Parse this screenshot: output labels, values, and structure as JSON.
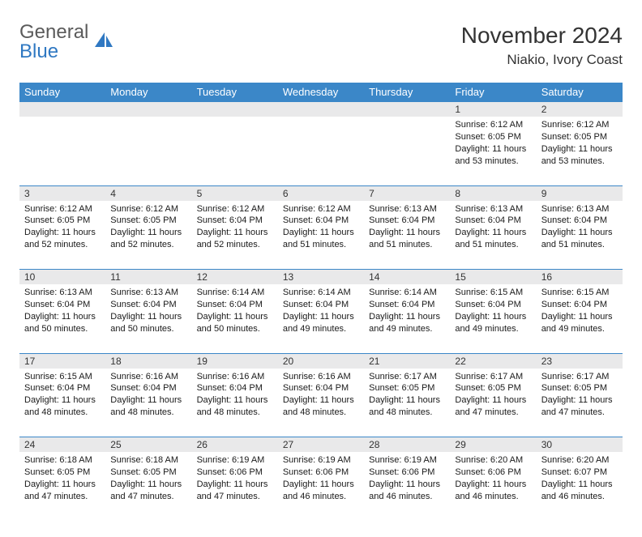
{
  "brand": {
    "line1": "General",
    "line2": "Blue",
    "logo_color": "#2f78c2",
    "text_color": "#5a5a5a"
  },
  "title": "November 2024",
  "location": "Niakio, Ivory Coast",
  "colors": {
    "header_bg": "#3b87c8",
    "header_text": "#ffffff",
    "daynum_bg": "#e9e9ea",
    "cell_border": "#3b87c8",
    "body_text": "#1a1a1a",
    "title_text": "#333333"
  },
  "fonts": {
    "title_size": 28,
    "location_size": 17,
    "dayname_size": 13,
    "daynum_size": 12,
    "cell_size": 11
  },
  "daynames": [
    "Sunday",
    "Monday",
    "Tuesday",
    "Wednesday",
    "Thursday",
    "Friday",
    "Saturday"
  ],
  "weeks": [
    [
      null,
      null,
      null,
      null,
      null,
      {
        "n": "1",
        "sr": "Sunrise: 6:12 AM",
        "ss": "Sunset: 6:05 PM",
        "d1": "Daylight: 11 hours",
        "d2": "and 53 minutes."
      },
      {
        "n": "2",
        "sr": "Sunrise: 6:12 AM",
        "ss": "Sunset: 6:05 PM",
        "d1": "Daylight: 11 hours",
        "d2": "and 53 minutes."
      }
    ],
    [
      {
        "n": "3",
        "sr": "Sunrise: 6:12 AM",
        "ss": "Sunset: 6:05 PM",
        "d1": "Daylight: 11 hours",
        "d2": "and 52 minutes."
      },
      {
        "n": "4",
        "sr": "Sunrise: 6:12 AM",
        "ss": "Sunset: 6:05 PM",
        "d1": "Daylight: 11 hours",
        "d2": "and 52 minutes."
      },
      {
        "n": "5",
        "sr": "Sunrise: 6:12 AM",
        "ss": "Sunset: 6:04 PM",
        "d1": "Daylight: 11 hours",
        "d2": "and 52 minutes."
      },
      {
        "n": "6",
        "sr": "Sunrise: 6:12 AM",
        "ss": "Sunset: 6:04 PM",
        "d1": "Daylight: 11 hours",
        "d2": "and 51 minutes."
      },
      {
        "n": "7",
        "sr": "Sunrise: 6:13 AM",
        "ss": "Sunset: 6:04 PM",
        "d1": "Daylight: 11 hours",
        "d2": "and 51 minutes."
      },
      {
        "n": "8",
        "sr": "Sunrise: 6:13 AM",
        "ss": "Sunset: 6:04 PM",
        "d1": "Daylight: 11 hours",
        "d2": "and 51 minutes."
      },
      {
        "n": "9",
        "sr": "Sunrise: 6:13 AM",
        "ss": "Sunset: 6:04 PM",
        "d1": "Daylight: 11 hours",
        "d2": "and 51 minutes."
      }
    ],
    [
      {
        "n": "10",
        "sr": "Sunrise: 6:13 AM",
        "ss": "Sunset: 6:04 PM",
        "d1": "Daylight: 11 hours",
        "d2": "and 50 minutes."
      },
      {
        "n": "11",
        "sr": "Sunrise: 6:13 AM",
        "ss": "Sunset: 6:04 PM",
        "d1": "Daylight: 11 hours",
        "d2": "and 50 minutes."
      },
      {
        "n": "12",
        "sr": "Sunrise: 6:14 AM",
        "ss": "Sunset: 6:04 PM",
        "d1": "Daylight: 11 hours",
        "d2": "and 50 minutes."
      },
      {
        "n": "13",
        "sr": "Sunrise: 6:14 AM",
        "ss": "Sunset: 6:04 PM",
        "d1": "Daylight: 11 hours",
        "d2": "and 49 minutes."
      },
      {
        "n": "14",
        "sr": "Sunrise: 6:14 AM",
        "ss": "Sunset: 6:04 PM",
        "d1": "Daylight: 11 hours",
        "d2": "and 49 minutes."
      },
      {
        "n": "15",
        "sr": "Sunrise: 6:15 AM",
        "ss": "Sunset: 6:04 PM",
        "d1": "Daylight: 11 hours",
        "d2": "and 49 minutes."
      },
      {
        "n": "16",
        "sr": "Sunrise: 6:15 AM",
        "ss": "Sunset: 6:04 PM",
        "d1": "Daylight: 11 hours",
        "d2": "and 49 minutes."
      }
    ],
    [
      {
        "n": "17",
        "sr": "Sunrise: 6:15 AM",
        "ss": "Sunset: 6:04 PM",
        "d1": "Daylight: 11 hours",
        "d2": "and 48 minutes."
      },
      {
        "n": "18",
        "sr": "Sunrise: 6:16 AM",
        "ss": "Sunset: 6:04 PM",
        "d1": "Daylight: 11 hours",
        "d2": "and 48 minutes."
      },
      {
        "n": "19",
        "sr": "Sunrise: 6:16 AM",
        "ss": "Sunset: 6:04 PM",
        "d1": "Daylight: 11 hours",
        "d2": "and 48 minutes."
      },
      {
        "n": "20",
        "sr": "Sunrise: 6:16 AM",
        "ss": "Sunset: 6:04 PM",
        "d1": "Daylight: 11 hours",
        "d2": "and 48 minutes."
      },
      {
        "n": "21",
        "sr": "Sunrise: 6:17 AM",
        "ss": "Sunset: 6:05 PM",
        "d1": "Daylight: 11 hours",
        "d2": "and 48 minutes."
      },
      {
        "n": "22",
        "sr": "Sunrise: 6:17 AM",
        "ss": "Sunset: 6:05 PM",
        "d1": "Daylight: 11 hours",
        "d2": "and 47 minutes."
      },
      {
        "n": "23",
        "sr": "Sunrise: 6:17 AM",
        "ss": "Sunset: 6:05 PM",
        "d1": "Daylight: 11 hours",
        "d2": "and 47 minutes."
      }
    ],
    [
      {
        "n": "24",
        "sr": "Sunrise: 6:18 AM",
        "ss": "Sunset: 6:05 PM",
        "d1": "Daylight: 11 hours",
        "d2": "and 47 minutes."
      },
      {
        "n": "25",
        "sr": "Sunrise: 6:18 AM",
        "ss": "Sunset: 6:05 PM",
        "d1": "Daylight: 11 hours",
        "d2": "and 47 minutes."
      },
      {
        "n": "26",
        "sr": "Sunrise: 6:19 AM",
        "ss": "Sunset: 6:06 PM",
        "d1": "Daylight: 11 hours",
        "d2": "and 47 minutes."
      },
      {
        "n": "27",
        "sr": "Sunrise: 6:19 AM",
        "ss": "Sunset: 6:06 PM",
        "d1": "Daylight: 11 hours",
        "d2": "and 46 minutes."
      },
      {
        "n": "28",
        "sr": "Sunrise: 6:19 AM",
        "ss": "Sunset: 6:06 PM",
        "d1": "Daylight: 11 hours",
        "d2": "and 46 minutes."
      },
      {
        "n": "29",
        "sr": "Sunrise: 6:20 AM",
        "ss": "Sunset: 6:06 PM",
        "d1": "Daylight: 11 hours",
        "d2": "and 46 minutes."
      },
      {
        "n": "30",
        "sr": "Sunrise: 6:20 AM",
        "ss": "Sunset: 6:07 PM",
        "d1": "Daylight: 11 hours",
        "d2": "and 46 minutes."
      }
    ]
  ]
}
